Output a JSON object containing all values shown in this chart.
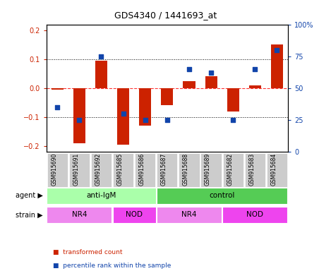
{
  "title": "GDS4340 / 1441693_at",
  "samples": [
    "GSM915690",
    "GSM915691",
    "GSM915692",
    "GSM915685",
    "GSM915686",
    "GSM915687",
    "GSM915688",
    "GSM915689",
    "GSM915682",
    "GSM915683",
    "GSM915684"
  ],
  "bar_values": [
    -0.005,
    -0.19,
    0.095,
    -0.195,
    -0.13,
    -0.06,
    0.025,
    0.04,
    -0.08,
    0.01,
    0.15
  ],
  "dot_values": [
    35,
    25,
    75,
    30,
    25,
    25,
    65,
    62,
    25,
    65,
    80
  ],
  "ylim_left": [
    -0.22,
    0.22
  ],
  "ylim_right": [
    0,
    100
  ],
  "yticks_left": [
    -0.2,
    -0.1,
    0.0,
    0.1,
    0.2
  ],
  "yticks_right": [
    0,
    25,
    50,
    75,
    100
  ],
  "ytick_labels_right": [
    "0",
    "25",
    "50",
    "75",
    "100%"
  ],
  "hlines_dotted": [
    0.1,
    -0.1
  ],
  "hline_dashed": 0.0,
  "bar_color": "#CC2200",
  "dot_color": "#1144AA",
  "agent_groups": [
    {
      "label": "anti-IgM",
      "start": 0,
      "end": 4,
      "color": "#AAFFAA"
    },
    {
      "label": "control",
      "start": 5,
      "end": 10,
      "color": "#55CC55"
    }
  ],
  "strain_groups": [
    {
      "label": "NR4",
      "start": 0,
      "end": 2,
      "color": "#EE88EE"
    },
    {
      "label": "NOD",
      "start": 3,
      "end": 4,
      "color": "#EE44EE"
    },
    {
      "label": "NR4",
      "start": 5,
      "end": 7,
      "color": "#EE88EE"
    },
    {
      "label": "NOD",
      "start": 8,
      "end": 10,
      "color": "#EE44EE"
    }
  ],
  "legend_items": [
    {
      "label": "transformed count",
      "color": "#CC2200"
    },
    {
      "label": "percentile rank within the sample",
      "color": "#1144AA"
    }
  ],
  "bar_width": 0.55,
  "tick_color_left": "#CC2200",
  "tick_color_right": "#1144AA",
  "sample_box_color": "#CCCCCC",
  "agent_label": "agent",
  "strain_label": "strain"
}
